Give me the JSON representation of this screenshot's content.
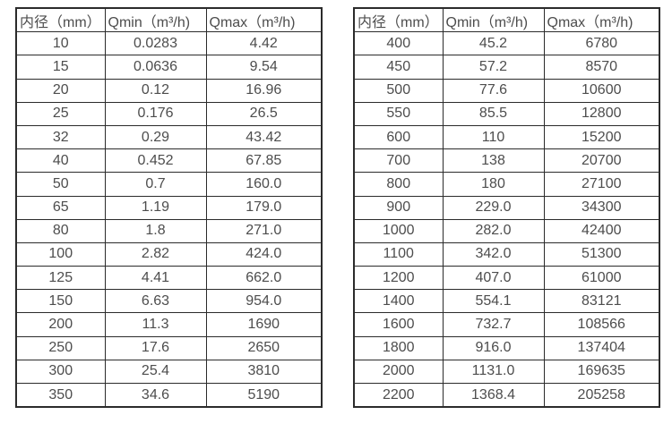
{
  "page": {
    "background_color": "#ffffff",
    "text_color": "#4d4d4d",
    "border_color": "#2b2b2b"
  },
  "tables": [
    {
      "name": "small-diameter-table",
      "headers": [
        "内径（mm）",
        "Qmin（m³/h)",
        "Qmax（m³/h)"
      ],
      "rows": [
        [
          "10",
          "0.0283",
          "4.42"
        ],
        [
          "15",
          "0.0636",
          "9.54"
        ],
        [
          "20",
          "0.12",
          "16.96"
        ],
        [
          "25",
          "0.176",
          "26.5"
        ],
        [
          "32",
          "0.29",
          "43.42"
        ],
        [
          "40",
          "0.452",
          "67.85"
        ],
        [
          "50",
          "0.7",
          "160.0"
        ],
        [
          "65",
          "1.19",
          "179.0"
        ],
        [
          "80",
          "1.8",
          "271.0"
        ],
        [
          "100",
          "2.82",
          "424.0"
        ],
        [
          "125",
          "4.41",
          "662.0"
        ],
        [
          "150",
          "6.63",
          "954.0"
        ],
        [
          "200",
          "11.3",
          "1690"
        ],
        [
          "250",
          "17.6",
          "2650"
        ],
        [
          "300",
          "25.4",
          "3810"
        ],
        [
          "350",
          "34.6",
          "5190"
        ]
      ]
    },
    {
      "name": "large-diameter-table",
      "headers": [
        "内径（mm）",
        "Qmin（m³/h)",
        "Qmax（m³/h)"
      ],
      "rows": [
        [
          "400",
          "45.2",
          "6780"
        ],
        [
          "450",
          "57.2",
          "8570"
        ],
        [
          "500",
          "77.6",
          "10600"
        ],
        [
          "550",
          "85.5",
          "12800"
        ],
        [
          "600",
          "110",
          "15200"
        ],
        [
          "700",
          "138",
          "20700"
        ],
        [
          "800",
          "180",
          "27100"
        ],
        [
          "900",
          "229.0",
          "34300"
        ],
        [
          "1000",
          "282.0",
          "42400"
        ],
        [
          "1100",
          "342.0",
          "51300"
        ],
        [
          "1200",
          "407.0",
          "61000"
        ],
        [
          "1400",
          "554.1",
          "83121"
        ],
        [
          "1600",
          "732.7",
          "108566"
        ],
        [
          "1800",
          "916.0",
          "137404"
        ],
        [
          "2000",
          "1131.0",
          "169635"
        ],
        [
          "2200",
          "1368.4",
          "205258"
        ]
      ]
    }
  ]
}
